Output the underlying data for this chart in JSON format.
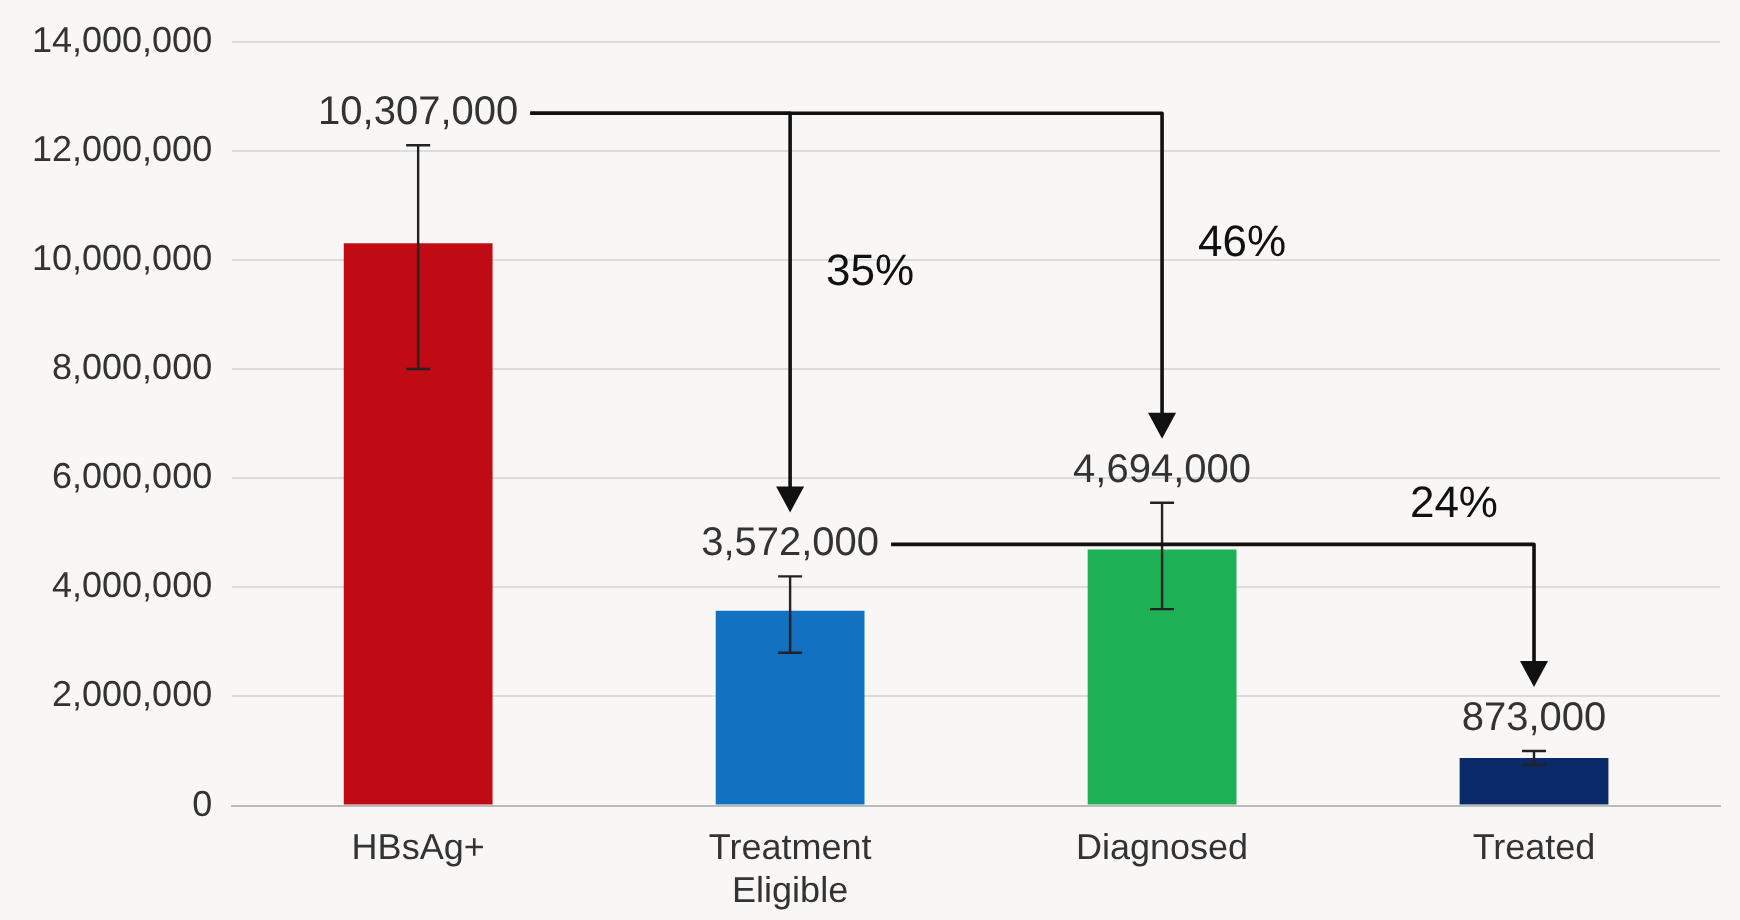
{
  "chart_data": {
    "type": "bar",
    "categories": [
      "HBsAg+",
      "Treatment Eligible",
      "Diagnosed",
      "Treated"
    ],
    "values": [
      10307000,
      3572000,
      4694000,
      873000
    ],
    "colors": [
      "#c00a14",
      "#1271c0",
      "#1eb055",
      "#0a2a6a"
    ],
    "errors": [
      [
        8000000,
        12100000
      ],
      [
        2800000,
        4200000
      ],
      [
        3600000,
        5550000
      ],
      [
        750000,
        1000000
      ]
    ],
    "value_labels": [
      "10,307,000",
      "3,572,000",
      "4,694,000",
      "873,000"
    ],
    "ylim": [
      0,
      14000000
    ],
    "yticks": [
      0,
      {
        "value": 2000000,
        "label": "2,000,000"
      },
      {
        "value": 4000000,
        "label": "4,000,000"
      },
      {
        "value": 6000000,
        "label": "6,000,000"
      },
      {
        "value": 8000000,
        "label": "8,000,000"
      },
      {
        "value": 10000000,
        "label": "10,000,000"
      },
      {
        "value": 12000000,
        "label": "12,000,000"
      },
      {
        "value": 14000000,
        "label": "14,000,000"
      }
    ],
    "grid": "y",
    "legend": false,
    "annotations": [
      "35%",
      "46%",
      "24%"
    ]
  }
}
